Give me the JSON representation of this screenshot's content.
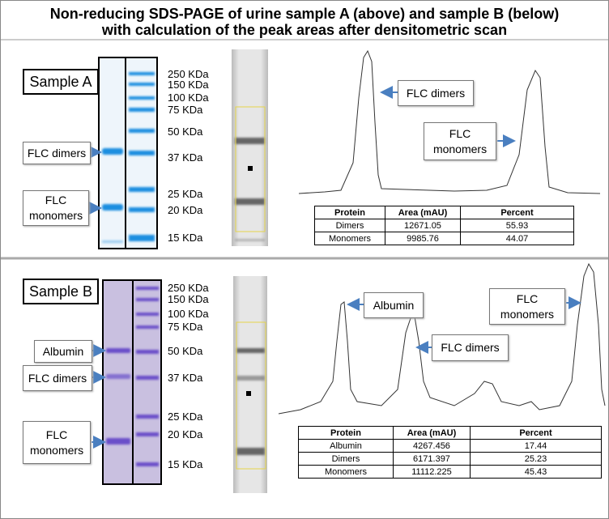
{
  "title": [
    "Non-reducing SDS-PAGE of urine sample A (above) and sample B (below)",
    "with calculation of the peak areas after densitometric scan"
  ],
  "panels": [
    {
      "label": "Sample A",
      "markers": [
        "250 KDa",
        "150 KDa",
        "100 KDa",
        "75 KDa",
        "50 KDa",
        "37 KDa",
        "25 KDa",
        "20 KDa",
        "15 KDa"
      ],
      "band_labels": [
        "FLC dimers",
        "FLC monomers"
      ],
      "peak_labels": [
        "FLC dimers",
        "FLC monomers"
      ],
      "table": {
        "header": [
          "Protein",
          "Area (mAU)",
          "Percent"
        ],
        "rows": [
          [
            "Dimers",
            12671.05,
            55.93
          ],
          [
            "Monomers",
            9985.76,
            44.07
          ]
        ]
      }
    },
    {
      "label": "Sample B",
      "markers": [
        "250 KDa",
        "150 KDa",
        "100 KDa",
        "75 KDa",
        "50 KDa",
        "37 KDa",
        "25 KDa",
        "20 KDa",
        "15 KDa"
      ],
      "band_labels": [
        "Albumin",
        "FLC dimers",
        "FLC monomers"
      ],
      "peak_labels": [
        "Albumin",
        "FLC dimers",
        "FLC monomers"
      ],
      "table": {
        "header": [
          "Protein",
          "Area (mAU)",
          "Percent"
        ],
        "rows": [
          [
            "Albumin",
            4267.456,
            17.44
          ],
          [
            "Dimers",
            6171.397,
            25.23
          ],
          [
            "Monomers",
            11112.225,
            45.43
          ]
        ]
      }
    }
  ]
}
